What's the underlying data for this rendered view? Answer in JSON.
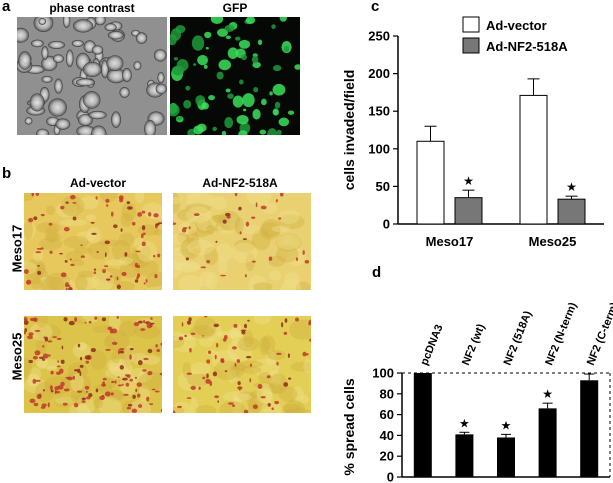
{
  "panels": {
    "a": {
      "letter": "a",
      "images": [
        {
          "label": "phase contrast"
        },
        {
          "label": "GFP"
        }
      ]
    },
    "b": {
      "letter": "b",
      "columns": [
        "Ad-vector",
        "Ad-NF2-518A"
      ],
      "rows": [
        "Meso17",
        "Meso25"
      ]
    },
    "c": {
      "letter": "c",
      "legend": [
        {
          "name": "Ad-vector",
          "color": "#ffffff"
        },
        {
          "name": "Ad-NF2-518A",
          "color": "#777777"
        }
      ],
      "star": "★"
    },
    "d": {
      "letter": "d",
      "star": "★"
    }
  },
  "chart_data": [
    {
      "type": "bar",
      "panel": "c",
      "categories": [
        "Meso17",
        "Meso25"
      ],
      "series": [
        {
          "name": "Ad-vector",
          "values": [
            110,
            171
          ],
          "errors": [
            20,
            22
          ],
          "color": "#ffffff"
        },
        {
          "name": "Ad-NF2-518A",
          "values": [
            35,
            33
          ],
          "errors": [
            10,
            4
          ],
          "color": "#777777"
        }
      ],
      "significant": [
        [
          false,
          true
        ],
        [
          false,
          true
        ]
      ],
      "ylabel": "cells invaded/field",
      "xlabel": "",
      "yticks": [
        0,
        50,
        100,
        150,
        200,
        250
      ],
      "ylim": [
        0,
        250
      ],
      "legend_position": "top-left"
    },
    {
      "type": "bar",
      "panel": "d",
      "categories": [
        "pcDNA3",
        "NF2 (wt)",
        "NF2 (518A)",
        "NF2 (N-term)",
        "NF2 (C-term)"
      ],
      "values": [
        100,
        41,
        38,
        66,
        93
      ],
      "errors": [
        0,
        2,
        3,
        5,
        6
      ],
      "significant": [
        false,
        true,
        true,
        true,
        false
      ],
      "ylabel": "% spread cells",
      "xlabel": "",
      "yticks": [
        0,
        20,
        40,
        60,
        80,
        100
      ],
      "ylim": [
        0,
        100
      ],
      "reference_line": 100,
      "color": "#000000"
    }
  ]
}
